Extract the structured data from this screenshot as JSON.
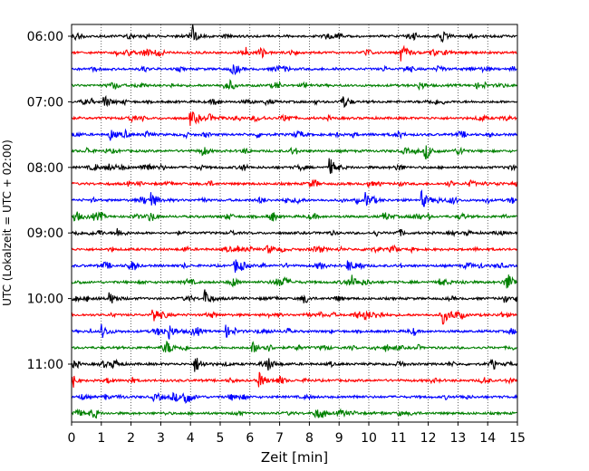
{
  "chart_data": {
    "type": "line",
    "title": "",
    "xlabel": "Zeit  [min]",
    "ylabel": "UTC (Lokalzeit = UTC + 02:00)",
    "xlim": [
      0,
      15
    ],
    "x_ticks": [
      "0",
      "1",
      "2",
      "3",
      "4",
      "5",
      "6",
      "7",
      "8",
      "9",
      "10",
      "11",
      "12",
      "13",
      "14",
      "15"
    ],
    "y_tick_labels": [
      "06:00",
      "07:00",
      "08:00",
      "09:00",
      "10:00",
      "11:00"
    ],
    "grid": "vertical dotted",
    "trace_interval_min": 15,
    "trace_start": "06:00",
    "trace_count": 24,
    "trace_colors": [
      "#000000",
      "#ff0000",
      "#0000ff",
      "#008000"
    ],
    "events": [
      {
        "trace": 0,
        "x": 4.05,
        "amp": 1.0
      },
      {
        "trace": 1,
        "x": 11.1,
        "amp": 1.0
      },
      {
        "trace": 4,
        "x": 1.1,
        "amp": 0.8
      },
      {
        "trace": 5,
        "x": 4.0,
        "amp": 0.9
      },
      {
        "trace": 6,
        "x": 1.3,
        "amp": 0.7
      },
      {
        "trace": 7,
        "x": 11.9,
        "amp": 0.8
      },
      {
        "trace": 8,
        "x": 8.7,
        "amp": 1.0
      },
      {
        "trace": 10,
        "x": 2.7,
        "amp": 0.9
      },
      {
        "trace": 10,
        "x": 9.9,
        "amp": 0.9
      },
      {
        "trace": 10,
        "x": 11.8,
        "amp": 1.0
      },
      {
        "trace": 11,
        "x": 0.1,
        "amp": 0.8
      },
      {
        "trace": 11,
        "x": 10.5,
        "amp": 0.6
      },
      {
        "trace": 13,
        "x": 6.6,
        "amp": 0.6
      },
      {
        "trace": 14,
        "x": 5.5,
        "amp": 0.8
      },
      {
        "trace": 14,
        "x": 9.3,
        "amp": 0.7
      },
      {
        "trace": 15,
        "x": 7.1,
        "amp": 0.7
      },
      {
        "trace": 15,
        "x": 9.4,
        "amp": 0.8
      },
      {
        "trace": 15,
        "x": 12.4,
        "amp": 0.6
      },
      {
        "trace": 16,
        "x": 1.3,
        "amp": 0.7
      },
      {
        "trace": 16,
        "x": 4.5,
        "amp": 0.8
      },
      {
        "trace": 17,
        "x": 2.75,
        "amp": 1.0
      },
      {
        "trace": 17,
        "x": 9.9,
        "amp": 0.6
      },
      {
        "trace": 17,
        "x": 12.5,
        "amp": 1.0
      },
      {
        "trace": 18,
        "x": 1.0,
        "amp": 0.9
      },
      {
        "trace": 18,
        "x": 3.3,
        "amp": 0.8
      },
      {
        "trace": 18,
        "x": 5.2,
        "amp": 0.7
      },
      {
        "trace": 19,
        "x": 6.1,
        "amp": 0.7
      },
      {
        "trace": 20,
        "x": 4.15,
        "amp": 1.1
      },
      {
        "trace": 20,
        "x": 6.6,
        "amp": 0.8
      },
      {
        "trace": 21,
        "x": 6.3,
        "amp": 1.0
      },
      {
        "trace": 22,
        "x": 3.8,
        "amp": 1.0
      }
    ]
  }
}
